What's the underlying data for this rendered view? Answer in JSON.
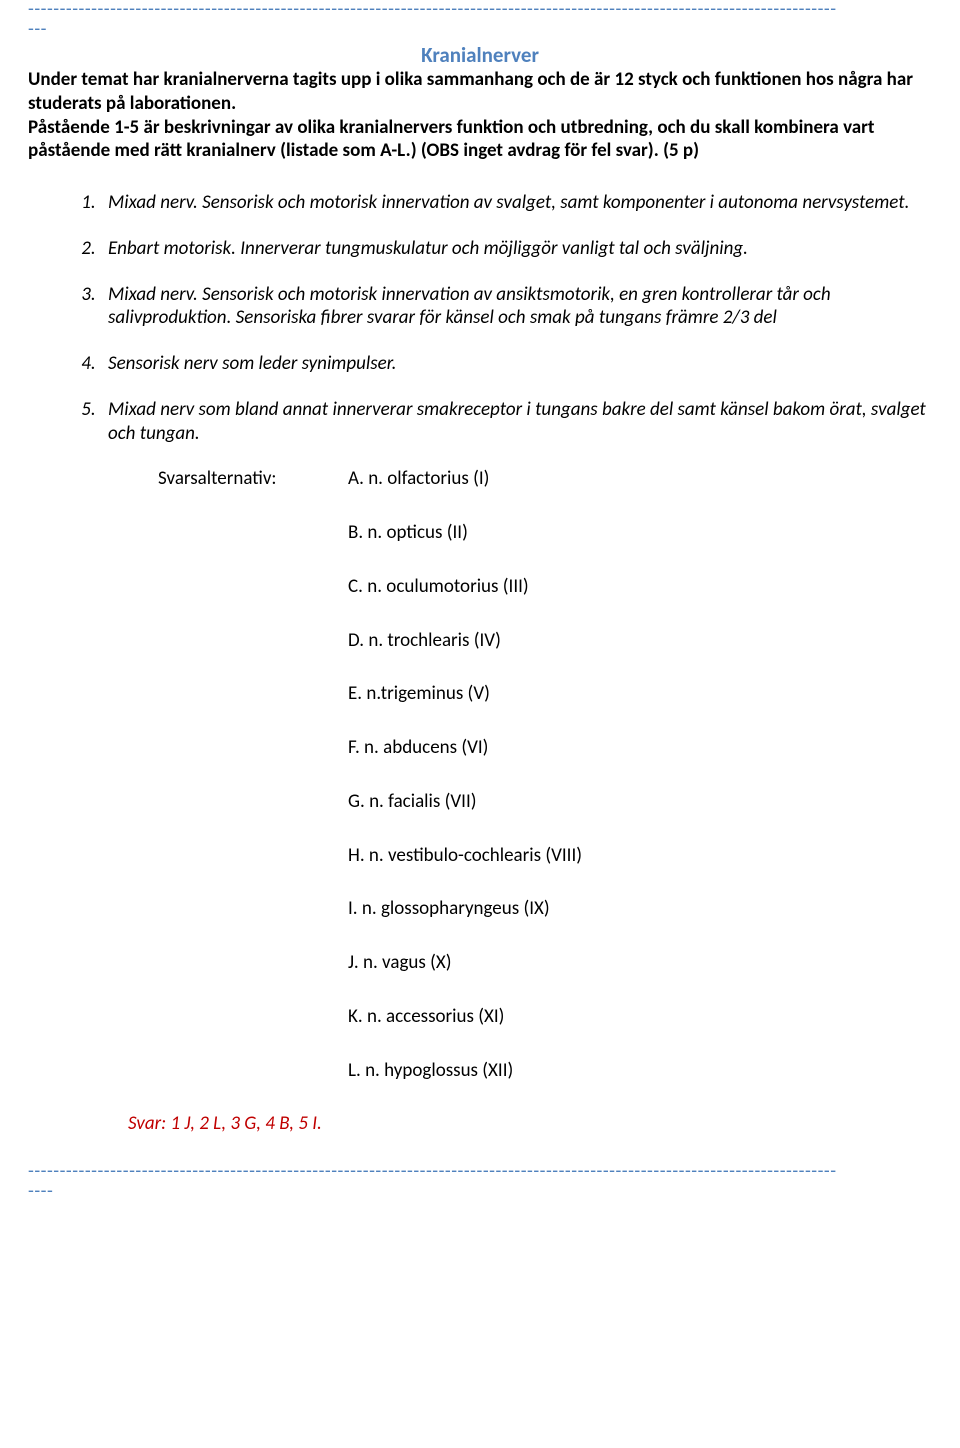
{
  "colors": {
    "accent": "#4f81bd",
    "answer": "#c00000",
    "text": "#000000",
    "background": "#ffffff"
  },
  "rule_top_line1": "--------------------------------------------------------------------------------------------------------------------------------",
  "rule_top_line2": "---",
  "section_title": "Kranialnerver",
  "intro_1": "Under temat har kranialnerverna tagits upp i olika sammanhang och de är 12 styck och funktionen hos några har studerats på laborationen.",
  "intro_2": "Påstående 1-5 är beskrivningar av olika kranialnervers funktion och utbredning, och du skall kombinera vart påstående med rätt kranialnerv (listade som A-L.) (OBS inget avdrag för fel svar).   (5 p)",
  "statements": [
    "Mixad nerv. Sensorisk och motorisk innervation av svalget, samt komponenter i autonoma nervsystemet.",
    "Enbart motorisk. Innerverar tungmuskulatur och möjliggör vanligt tal och sväljning.",
    "Mixad nerv. Sensorisk och motorisk innervation av ansiktsmotorik, en gren kontrollerar tår och salivproduktion. Sensoriska fibrer svarar för känsel och smak på tungans främre 2/3 del",
    "Sensorisk nerv som leder synimpulser.",
    "Mixad nerv som bland annat innerverar smakreceptor i tungans bakre del samt känsel bakom örat, svalget och tungan."
  ],
  "alternatives_label": "Svarsalternativ:",
  "alternatives": [
    "A. n. olfactorius (I)",
    "B. n. opticus (II)",
    "C. n. oculumotorius (III)",
    "D. n. trochlearis (IV)",
    "E. n.trigeminus (V)",
    "F. n. abducens (VI)",
    "G. n. facialis (VII)",
    "H. n. vestibulo-cochlearis (VIII)",
    "I. n. glossopharyngeus (IX)",
    "J. n. vagus (X)",
    "K. n. accessorius (XI)",
    "L. n. hypoglossus (XII)"
  ],
  "answer": "Svar: 1 J, 2 L, 3 G, 4 B, 5 I.",
  "rule_bottom_line1": "--------------------------------------------------------------------------------------------------------------------------------",
  "rule_bottom_line2": "----"
}
